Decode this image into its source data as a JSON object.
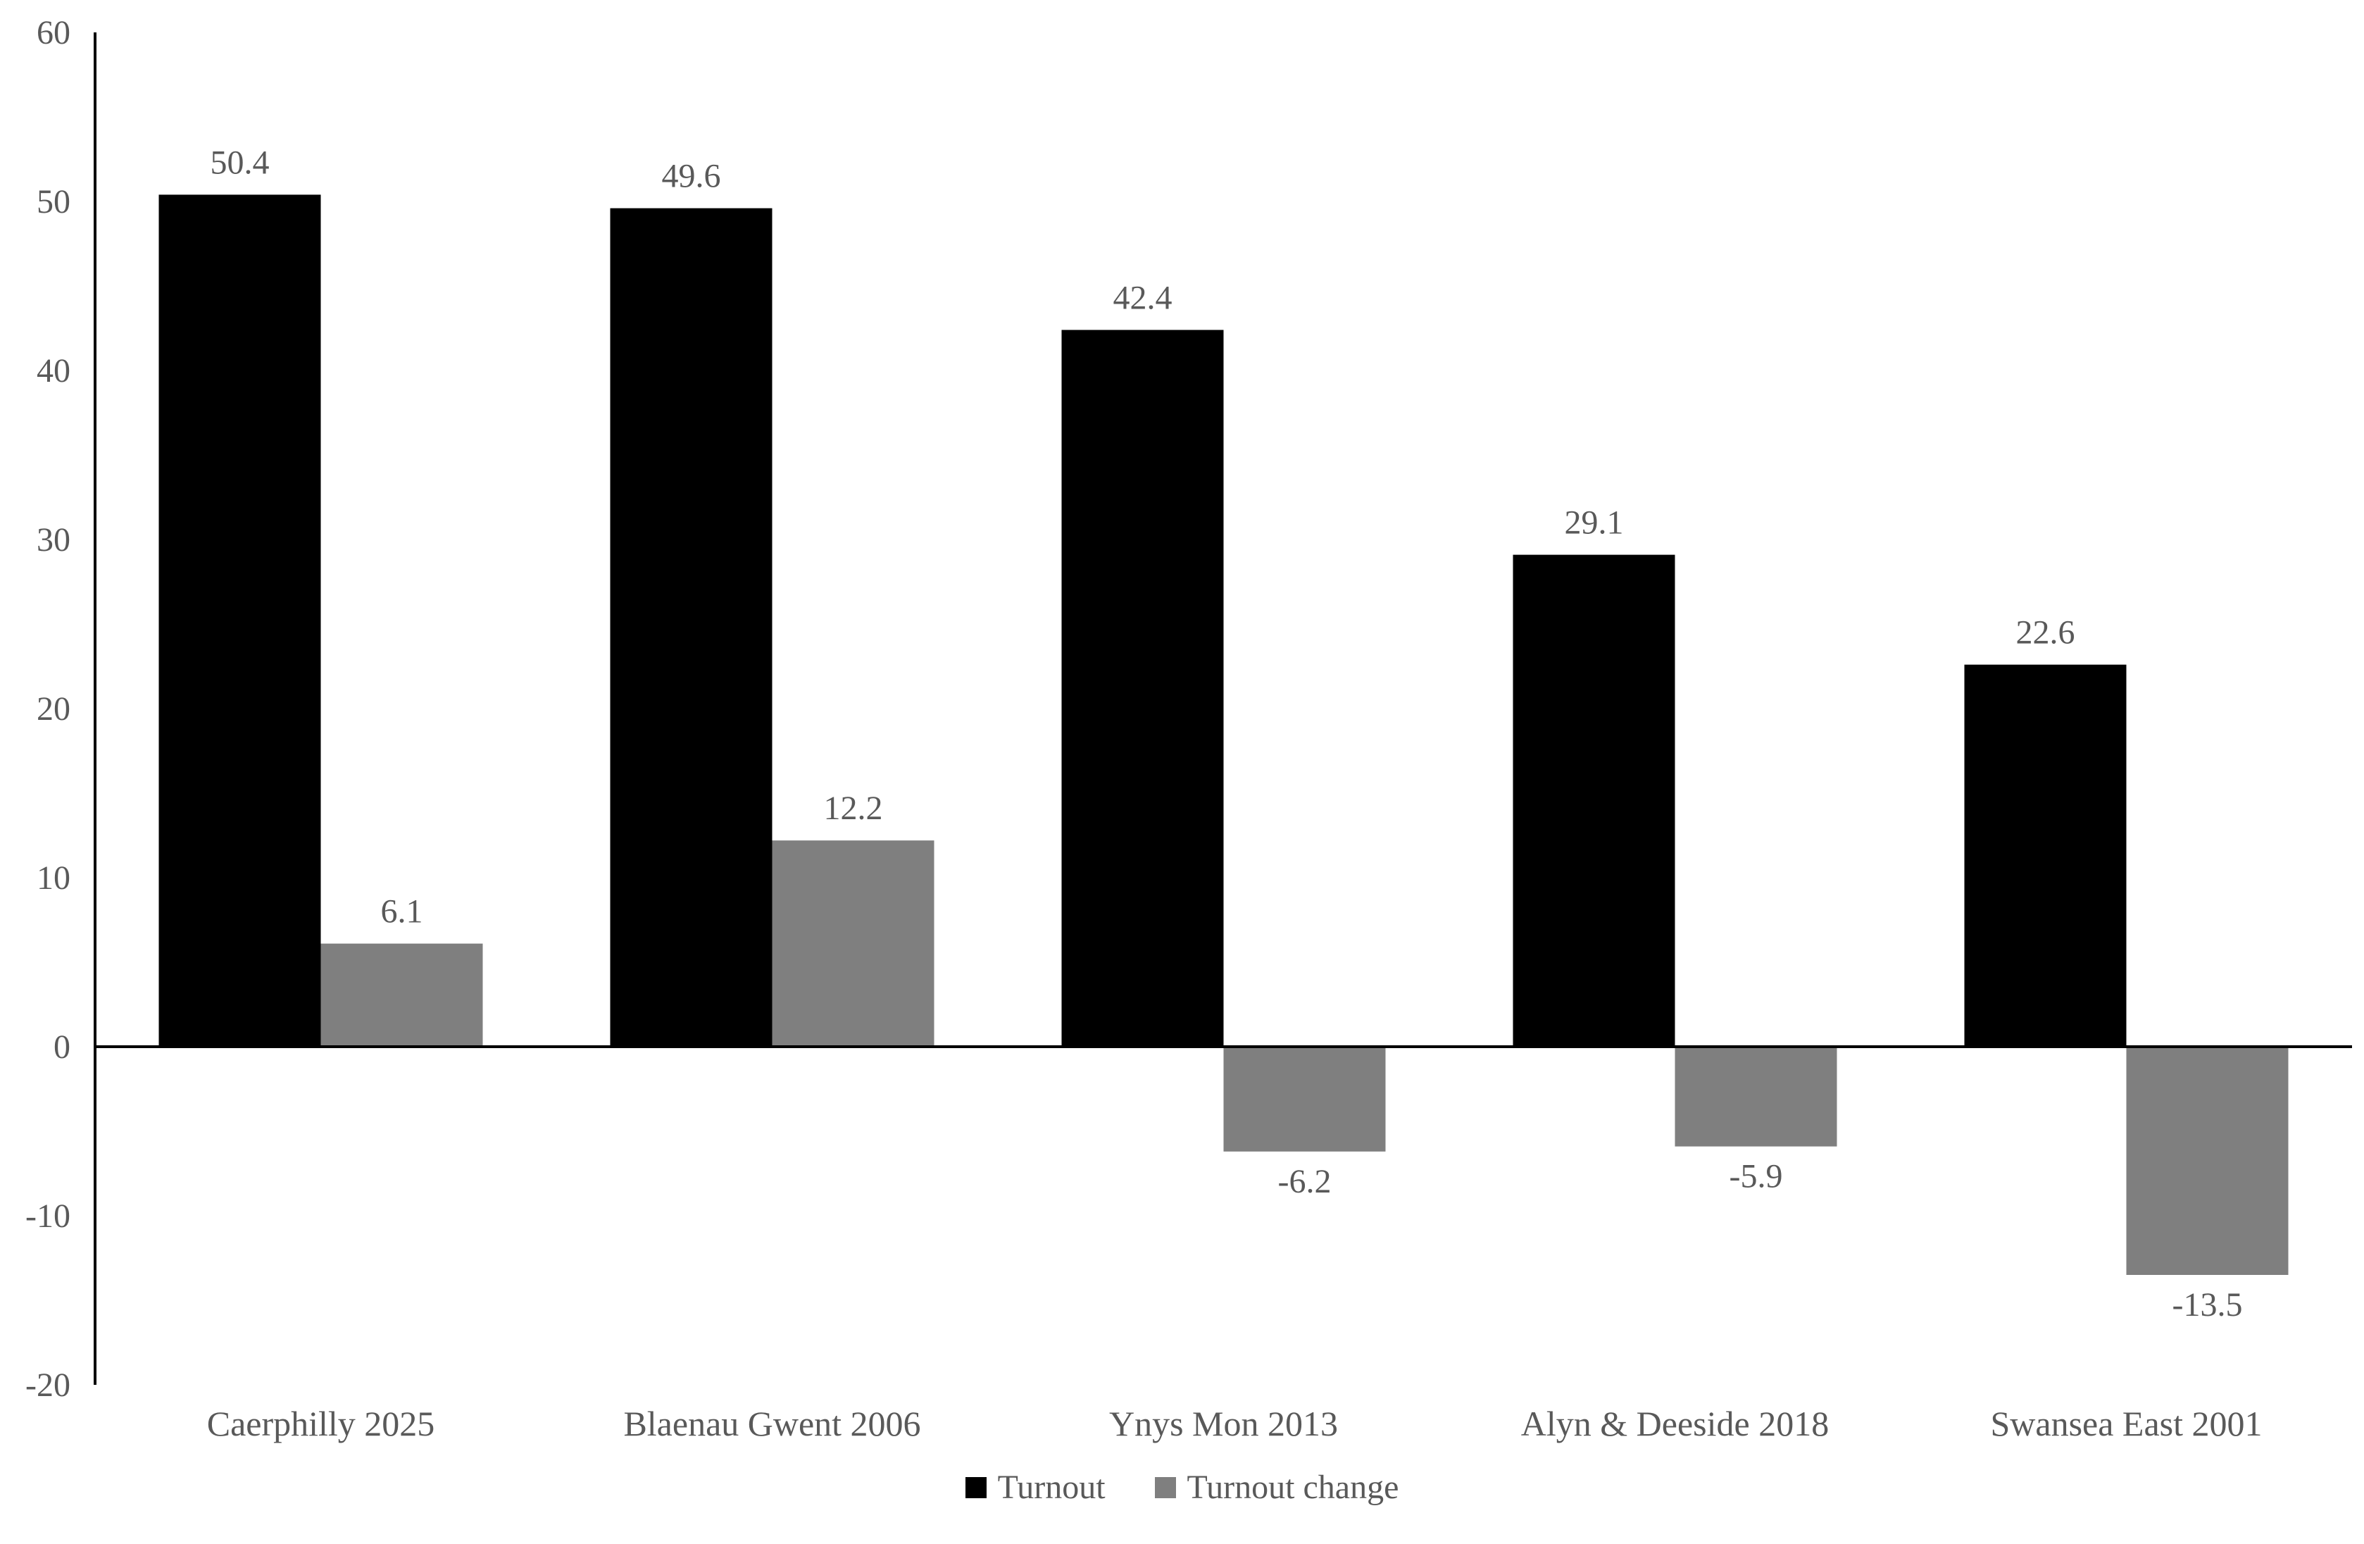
{
  "chart_data": {
    "type": "bar",
    "title": "",
    "xlabel": "",
    "ylabel": "",
    "categories": [
      "Caerphilly 2025",
      "Blaenau Gwent 2006",
      "Ynys Mon 2013",
      "Alyn & Deeside 2018",
      "Swansea East 2001"
    ],
    "series": [
      {
        "name": "Turnout",
        "color": "#000000",
        "values": [
          50.4,
          49.6,
          42.4,
          29.1,
          22.6
        ]
      },
      {
        "name": "Turnout change",
        "color": "#7f7f7f",
        "values": [
          6.1,
          12.2,
          -6.2,
          -5.9,
          -13.5
        ]
      }
    ],
    "data_labels": [
      {
        "series": "Turnout",
        "labels": [
          "50.4",
          "49.6",
          "42.4",
          "29.1",
          "22.6"
        ]
      },
      {
        "series": "Turnout change",
        "labels": [
          "6.1",
          "12.2",
          "-6.2",
          "-5.9",
          "-13.5"
        ]
      }
    ],
    "ylim": [
      -20,
      60
    ],
    "yticks": [
      "60",
      "50",
      "40",
      "30",
      "20",
      "10",
      "0",
      "-10",
      "-20"
    ],
    "grid": false,
    "legend_position": "bottom",
    "colors": {
      "text": "#595959",
      "axis": "#000000",
      "background": "#ffffff"
    }
  }
}
